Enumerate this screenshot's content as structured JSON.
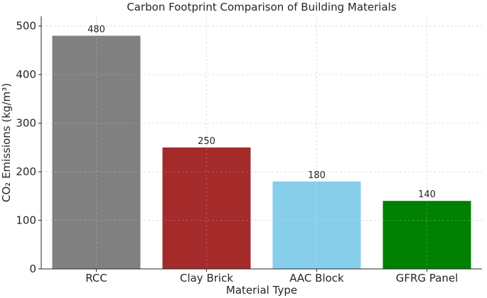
{
  "chart_data": {
    "type": "bar",
    "title": "Carbon Footprint Comparison of Building Materials",
    "xlabel": "Material Type",
    "ylabel": "CO₂ Emissions (kg/m³)",
    "categories": [
      "RCC",
      "Clay Brick",
      "AAC Block",
      "GFRG Panel"
    ],
    "values": [
      480,
      250,
      180,
      140
    ],
    "data_labels": [
      "480",
      "250",
      "180",
      "140"
    ],
    "colors": [
      "#808080",
      "#a52a2a",
      "#87ceeb",
      "#008000"
    ],
    "ylim": [
      0,
      520
    ],
    "yticks": [
      0,
      100,
      200,
      300,
      400,
      500
    ],
    "grid": true,
    "legend": false
  }
}
